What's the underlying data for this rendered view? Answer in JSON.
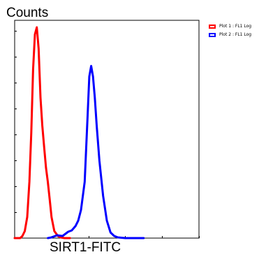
{
  "chart_data": {
    "type": "line",
    "ylabel": "Counts",
    "xlabel": "SIRT1-FITC",
    "x_scale": "log",
    "grid": false,
    "legend_position": "top-right",
    "legend": [
      "Plot 1 : FL1 Log",
      "Plot 2 : FL1 Log"
    ],
    "series": [
      {
        "name": "Plot 1 : FL1 Log",
        "color": "#ff0000",
        "x": [
          0.0,
          0.015,
          0.03,
          0.042,
          0.055,
          0.068,
          0.08,
          0.09,
          0.1,
          0.11,
          0.12,
          0.13,
          0.14,
          0.15,
          0.16,
          0.17,
          0.18,
          0.19,
          0.2,
          0.215,
          0.235,
          0.25,
          0.27,
          0.3
        ],
        "y": [
          0,
          0,
          0,
          3,
          10,
          30,
          80,
          150,
          240,
          290,
          300,
          270,
          200,
          160,
          130,
          100,
          80,
          55,
          30,
          10,
          3,
          1,
          0,
          0
        ]
      },
      {
        "name": "Plot 2 : FL1 Log",
        "color": "#0000ff",
        "x": [
          0.18,
          0.2,
          0.23,
          0.26,
          0.29,
          0.31,
          0.33,
          0.345,
          0.36,
          0.38,
          0.395,
          0.405,
          0.415,
          0.425,
          0.435,
          0.445,
          0.46,
          0.48,
          0.5,
          0.52,
          0.54,
          0.56,
          0.6,
          0.7
        ],
        "y": [
          0,
          1,
          4,
          3,
          9,
          11,
          17,
          25,
          40,
          80,
          170,
          230,
          245,
          230,
          200,
          160,
          110,
          60,
          25,
          8,
          3,
          1,
          0,
          0
        ]
      }
    ]
  }
}
